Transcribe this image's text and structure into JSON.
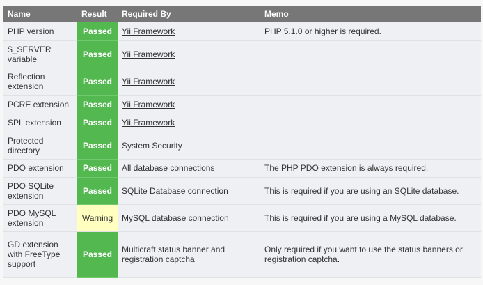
{
  "colors": {
    "header": "#777777",
    "passed": "#52b84f",
    "warning": "#ffffc0"
  },
  "columns": [
    "Name",
    "Result",
    "Required By",
    "Memo"
  ],
  "rows": [
    {
      "name": "PHP version",
      "result": "Passed",
      "status": "passed",
      "required_by": "Yii Framework",
      "link": true,
      "memo": "PHP 5.1.0 or higher is required."
    },
    {
      "name": "$_SERVER variable",
      "result": "Passed",
      "status": "passed",
      "required_by": "Yii Framework",
      "link": true,
      "memo": ""
    },
    {
      "name": "Reflection extension",
      "result": "Passed",
      "status": "passed",
      "required_by": "Yii Framework",
      "link": true,
      "memo": ""
    },
    {
      "name": "PCRE extension",
      "result": "Passed",
      "status": "passed",
      "required_by": "Yii Framework",
      "link": true,
      "memo": ""
    },
    {
      "name": "SPL extension",
      "result": "Passed",
      "status": "passed",
      "required_by": "Yii Framework",
      "link": true,
      "memo": ""
    },
    {
      "name": "Protected directory",
      "result": "Passed",
      "status": "passed",
      "required_by": "System Security",
      "link": false,
      "memo": ""
    },
    {
      "name": "PDO extension",
      "result": "Passed",
      "status": "passed",
      "required_by": "All database connections",
      "link": false,
      "memo": "The PHP PDO extension is always required."
    },
    {
      "name": "PDO SQLite extension",
      "result": "Passed",
      "status": "passed",
      "required_by": "SQLite Database connection",
      "link": false,
      "memo": "This is required if you are using an SQLite database."
    },
    {
      "name": "PDO MySQL extension",
      "result": "Warning",
      "status": "warning",
      "required_by": "MySQL database connection",
      "link": false,
      "memo": "This is required if you are using a MySQL database."
    },
    {
      "name": "GD extension with FreeType support",
      "result": "Passed",
      "status": "passed",
      "required_by": "Multicraft status banner and registration captcha",
      "link": false,
      "memo": "Only required if you want to use the status banners or registration captcha."
    }
  ]
}
